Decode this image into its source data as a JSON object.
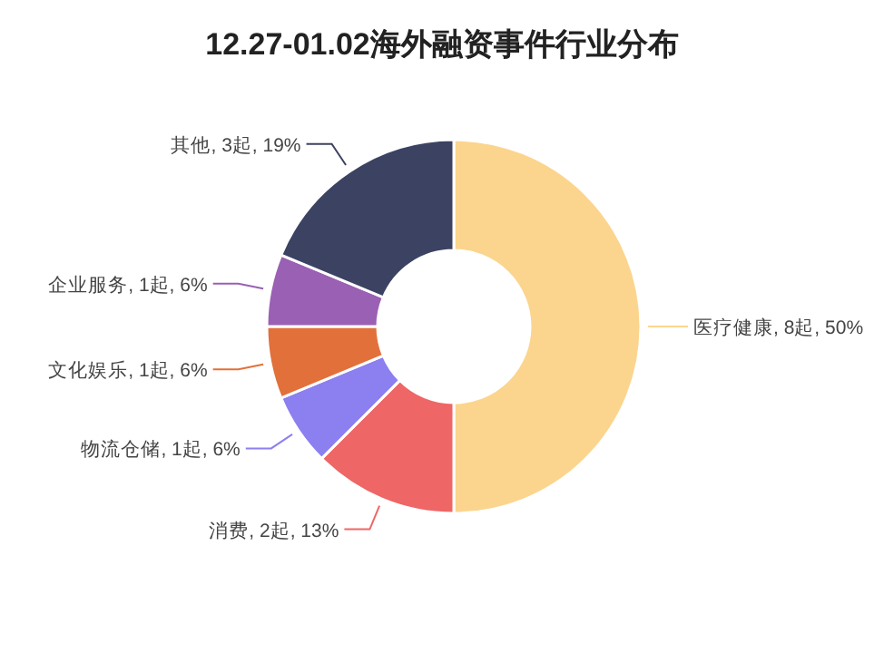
{
  "chart_data": {
    "type": "donut",
    "title": "12.27-01.02海外融资事件行业分布",
    "categories": [
      "医疗健康",
      "消费",
      "物流仓储",
      "文化娱乐",
      "企业服务",
      "其他"
    ],
    "values": [
      8,
      2,
      1,
      1,
      1,
      3
    ],
    "value_labels": [
      "8起, 50%",
      "2起, 13%",
      "1起, 6%",
      "1起, 6%",
      "1起, 6%",
      "3起, 19%"
    ],
    "colors": [
      "#fbd58e",
      "#ee6666",
      "#8c7ff0",
      "#e2703a",
      "#9a60b4",
      "#3c4262"
    ]
  }
}
